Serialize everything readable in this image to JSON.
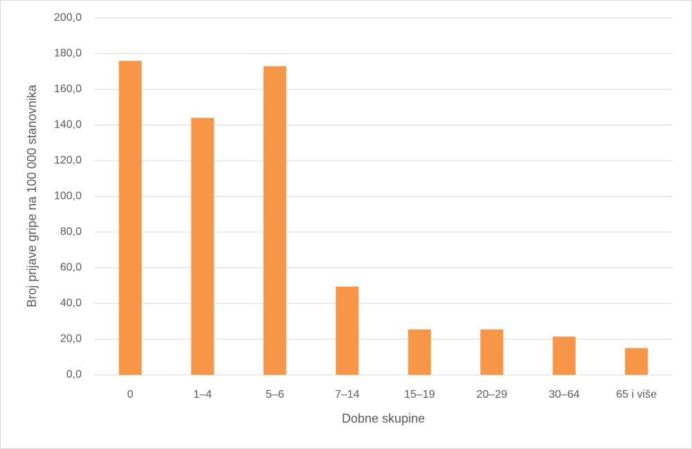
{
  "chart_data": {
    "type": "bar",
    "x_label": "Dobne skupine",
    "y_label": "Broj prijave gripe na 100 000 stanovnika",
    "categories": [
      "0",
      "1–4",
      "5–6",
      "7–14",
      "15–19",
      "20–29",
      "30–64",
      "65 i više"
    ],
    "values": [
      176,
      144,
      173,
      49.5,
      25.5,
      25.5,
      21.5,
      15
    ],
    "color": "#f79646",
    "ylim": [
      0,
      200
    ],
    "yticks": [
      {
        "value": 0,
        "label": "0,0"
      },
      {
        "value": 20,
        "label": "20,0"
      },
      {
        "value": 40,
        "label": "40,0"
      },
      {
        "value": 60,
        "label": "60,0"
      },
      {
        "value": 80,
        "label": "80,0"
      },
      {
        "value": 100,
        "label": "100,0"
      },
      {
        "value": 120,
        "label": "120,0"
      },
      {
        "value": 140,
        "label": "140,0"
      },
      {
        "value": 160,
        "label": "160,0"
      },
      {
        "value": 180,
        "label": "180,0"
      },
      {
        "value": 200,
        "label": "200,0"
      }
    ],
    "grid": true
  }
}
